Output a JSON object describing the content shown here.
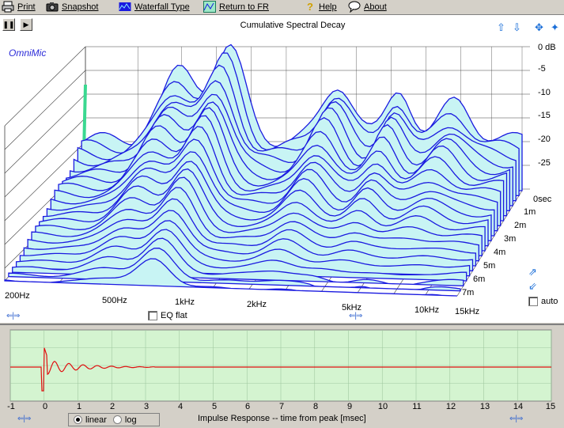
{
  "toolbar": {
    "print": "Print",
    "snapshot": "Snapshot",
    "waterfall_type": "Waterfall Type",
    "return_to_fr": "Return to FR",
    "help": "Help",
    "about": "About"
  },
  "plot": {
    "title": "Cumulative Spectral Decay",
    "brand": "OmniMic",
    "db_labels": [
      "0 dB",
      "-5",
      "-10",
      "-15",
      "-20",
      "-25"
    ],
    "time_labels": [
      "0sec",
      "1m",
      "2m",
      "3m",
      "4m",
      "5m",
      "6m",
      "7m"
    ],
    "freq_labels": [
      "200Hz",
      "500Hz",
      "1kHz",
      "2kHz",
      "5kHz",
      "10kHz",
      "15kHz"
    ],
    "eq_flat_label": "EQ flat",
    "eq_flat_checked": false,
    "auto_label": "auto",
    "auto_checked": false,
    "waterfall_fill": "#c8f4f4",
    "waterfall_line": "#1a1ae0",
    "grid_color": "#404040"
  },
  "impulse": {
    "caption": "Impulse Response  -- time from peak [msec]",
    "x_ticks": [
      "-1",
      "0",
      "1",
      "2",
      "3",
      "4",
      "5",
      "6",
      "7",
      "8",
      "9",
      "10",
      "11",
      "12",
      "13",
      "14",
      "15"
    ],
    "scale_options": [
      "linear",
      "log"
    ],
    "scale_selected": "linear",
    "bg_color": "#d4f4d0",
    "trace_color": "#e01010"
  }
}
